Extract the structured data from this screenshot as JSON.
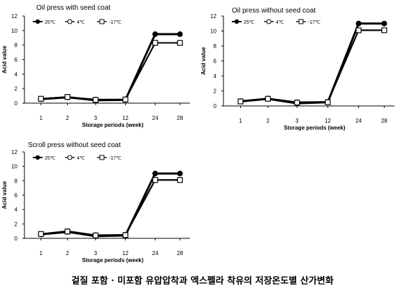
{
  "caption": "겉질 포함 · 미포함 유압압착과 엑스펠라 착유의 저장온도별 산가변화",
  "chart_data": [
    {
      "type": "line",
      "title": "Oil press with seed coat",
      "xlabel": "Storage periods (week)",
      "ylabel": "Acid value",
      "categories": [
        "1",
        "2",
        "3",
        "12",
        "24",
        "28"
      ],
      "ylim": [
        0,
        12
      ],
      "yticks": [
        "0",
        "2",
        "4",
        "6",
        "8",
        "10",
        "12"
      ],
      "grid": false,
      "legend_position": "top-left",
      "series": [
        {
          "name": "25℃",
          "marker": "filled-circle",
          "values": [
            0.55,
            0.8,
            0.4,
            0.45,
            9.5,
            9.5
          ]
        },
        {
          "name": "4℃",
          "marker": "open-circle",
          "values": [
            0.6,
            0.85,
            0.5,
            0.5,
            8.3,
            8.3
          ]
        },
        {
          "name": "-17℃",
          "marker": "open-square",
          "values": [
            0.6,
            0.85,
            0.45,
            0.5,
            8.3,
            8.3
          ]
        }
      ]
    },
    {
      "type": "line",
      "title": "Oil press without seed coat",
      "xlabel": "Storage periods (week)",
      "ylabel": "Acid value",
      "categories": [
        "1",
        "2",
        "3",
        "12",
        "24",
        "28"
      ],
      "ylim": [
        0,
        12
      ],
      "yticks": [
        "0",
        "2",
        "4",
        "6",
        "8",
        "10",
        "12"
      ],
      "grid": false,
      "legend_position": "top-left",
      "series": [
        {
          "name": "25℃",
          "marker": "filled-circle",
          "values": [
            0.6,
            0.95,
            0.35,
            0.5,
            11.0,
            11.0
          ]
        },
        {
          "name": "4℃",
          "marker": "open-circle",
          "values": [
            0.65,
            1.0,
            0.5,
            0.55,
            10.1,
            10.1
          ]
        },
        {
          "name": "-17℃",
          "marker": "open-square",
          "values": [
            0.6,
            0.95,
            0.45,
            0.5,
            10.1,
            10.1
          ]
        }
      ]
    },
    {
      "type": "line",
      "title": "Scroll  press without seed coat",
      "xlabel": "Storage periods (week)",
      "ylabel": "Acid value",
      "categories": [
        "1",
        "2",
        "3",
        "12",
        "24",
        "28"
      ],
      "ylim": [
        0,
        12
      ],
      "yticks": [
        "0",
        "2",
        "4",
        "6",
        "8",
        "10",
        "12"
      ],
      "grid": false,
      "legend_position": "top-left",
      "series": [
        {
          "name": "25℃",
          "marker": "filled-circle",
          "values": [
            0.55,
            0.9,
            0.3,
            0.4,
            9.0,
            9.0
          ]
        },
        {
          "name": "4℃",
          "marker": "open-circle",
          "values": [
            0.6,
            1.0,
            0.45,
            0.5,
            8.1,
            8.1
          ]
        },
        {
          "name": "-17℃",
          "marker": "open-square",
          "values": [
            0.6,
            0.95,
            0.4,
            0.45,
            8.1,
            8.1
          ]
        }
      ]
    }
  ]
}
